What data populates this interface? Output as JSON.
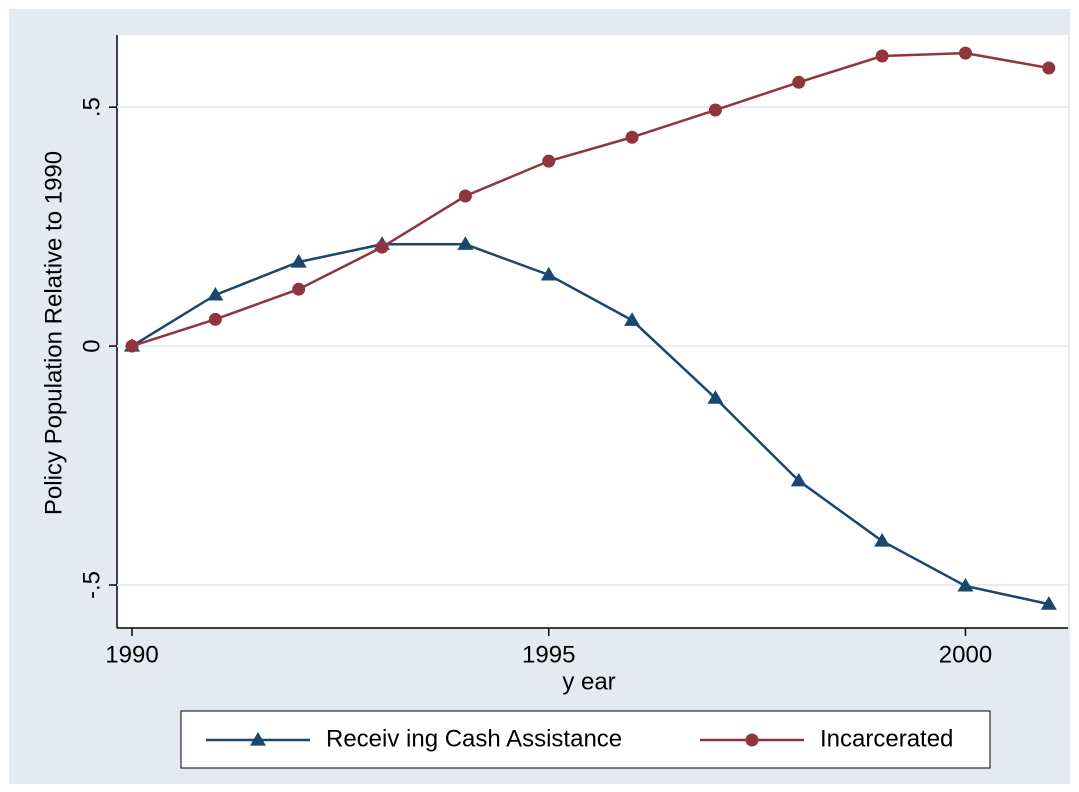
{
  "chart_data": {
    "type": "line",
    "x": [
      1990,
      1991,
      1992,
      1993,
      1994,
      1995,
      1996,
      1997,
      1998,
      1999,
      2000,
      2001
    ],
    "series": [
      {
        "name": "Receiv ing Cash Assistance",
        "color": "#1a476f",
        "marker": "triangle",
        "values": [
          0,
          0.107,
          0.176,
          0.213,
          0.213,
          0.149,
          0.054,
          -0.109,
          -0.282,
          -0.408,
          -0.502,
          -0.54
        ]
      },
      {
        "name": "Incarcerated",
        "color": "#90353b",
        "marker": "circle",
        "values": [
          0,
          0.056,
          0.119,
          0.207,
          0.314,
          0.387,
          0.437,
          0.494,
          0.552,
          0.607,
          0.613,
          0.582
        ]
      }
    ],
    "xlabel": "y ear",
    "ylabel": "Policy Population Relative to 1990",
    "xlim": [
      1989.82,
      2001.23
    ],
    "xticks": [
      1990,
      1995,
      2000
    ],
    "ylim": [
      -0.59,
      0.651
    ],
    "yticks": [
      {
        "value": -0.5,
        "label": "-.5"
      },
      0,
      {
        "value": 0.5,
        "label": ".5"
      }
    ],
    "grid": true,
    "legend": "bottom"
  }
}
